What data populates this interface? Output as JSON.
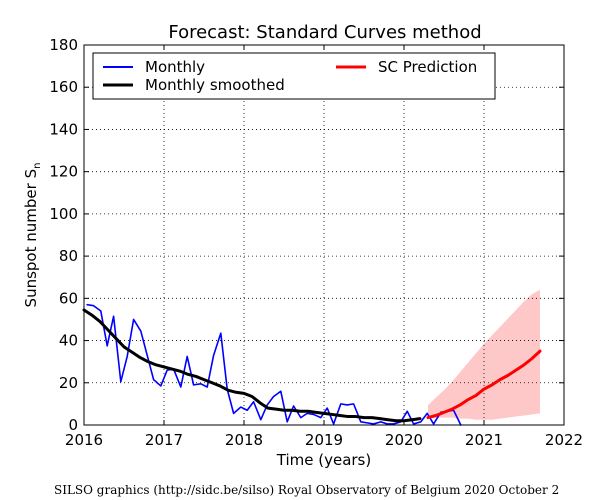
{
  "chart_data": {
    "type": "line",
    "title": "Forecast: Standard Curves method",
    "xlabel": "Time (years)",
    "ylabel": "Sunspot number S",
    "ylabel_subscript": "n",
    "xlim": [
      2016,
      2022
    ],
    "ylim": [
      0,
      180
    ],
    "xticks": [
      2016,
      2017,
      2018,
      2019,
      2020,
      2021,
      2022
    ],
    "yticks": [
      0,
      20,
      40,
      60,
      80,
      100,
      120,
      140,
      160,
      180
    ],
    "grid": true,
    "legend_position": "top",
    "series": [
      {
        "name": "Monthly",
        "color": "#0000ff",
        "x": [
          2016.04,
          2016.12,
          2016.21,
          2016.29,
          2016.37,
          2016.46,
          2016.54,
          2016.62,
          2016.71,
          2016.79,
          2016.87,
          2016.96,
          2017.04,
          2017.12,
          2017.21,
          2017.29,
          2017.37,
          2017.46,
          2017.54,
          2017.62,
          2017.71,
          2017.79,
          2017.87,
          2017.96,
          2018.04,
          2018.12,
          2018.21,
          2018.29,
          2018.37,
          2018.46,
          2018.54,
          2018.62,
          2018.71,
          2018.79,
          2018.87,
          2018.96,
          2019.04,
          2019.12,
          2019.21,
          2019.29,
          2019.37,
          2019.46,
          2019.54,
          2019.62,
          2019.71,
          2019.79,
          2019.87,
          2019.96,
          2020.04,
          2020.12,
          2020.21,
          2020.29,
          2020.37,
          2020.46,
          2020.54,
          2020.62,
          2020.71
        ],
        "values": [
          57,
          56.5,
          54,
          37.5,
          51.5,
          20.5,
          32.5,
          50,
          44.5,
          33,
          21.5,
          18.5,
          26,
          26.5,
          18,
          32.5,
          19,
          19.5,
          18,
          33,
          43.5,
          17,
          5.5,
          8.5,
          7,
          11,
          2.5,
          9.5,
          13.5,
          16,
          1.5,
          9,
          3.5,
          5.5,
          5,
          3.5,
          8,
          0.5,
          10,
          9.5,
          10,
          1.5,
          1,
          0.5,
          1.5,
          0.5,
          0.5,
          1.5,
          6.5,
          0.5,
          1.5,
          5.5,
          0.5,
          6,
          6.5,
          7,
          0
        ]
      },
      {
        "name": "Monthly smoothed",
        "color": "#000000",
        "x": [
          2016.0,
          2016.1,
          2016.2,
          2016.3,
          2016.4,
          2016.5,
          2016.6,
          2016.7,
          2016.8,
          2016.9,
          2017.0,
          2017.1,
          2017.2,
          2017.3,
          2017.4,
          2017.5,
          2017.6,
          2017.7,
          2017.8,
          2017.9,
          2018.0,
          2018.1,
          2018.2,
          2018.3,
          2018.4,
          2018.5,
          2018.6,
          2018.7,
          2018.8,
          2018.9,
          2019.0,
          2019.1,
          2019.2,
          2019.3,
          2019.4,
          2019.5,
          2019.6,
          2019.7,
          2019.8,
          2019.9,
          2020.0,
          2020.1,
          2020.2
        ],
        "values": [
          54.5,
          52,
          49,
          45,
          41,
          37,
          34.5,
          32,
          30,
          28.5,
          27.5,
          26.5,
          25.5,
          24,
          23,
          21.5,
          20,
          18.5,
          16.5,
          15.5,
          15,
          13.5,
          10.5,
          8,
          7.5,
          7,
          7,
          6.5,
          6.5,
          6,
          5.5,
          5,
          4.5,
          4,
          4,
          3.5,
          3.5,
          3,
          2.5,
          2,
          2,
          2.5,
          3
        ]
      },
      {
        "name": "SC Prediction",
        "color": "#ff0000",
        "x": [
          2020.3,
          2020.4,
          2020.5,
          2020.6,
          2020.7,
          2020.8,
          2020.9,
          2021.0,
          2021.1,
          2021.2,
          2021.3,
          2021.4,
          2021.5,
          2021.6,
          2021.7
        ],
        "values": [
          3.5,
          4.5,
          6,
          7.5,
          9.5,
          12,
          14,
          17,
          19,
          21.5,
          23.5,
          26,
          28.5,
          31.5,
          35
        ],
        "band_lower": [
          3,
          3.5,
          3.5,
          3.5,
          3,
          3,
          2.5,
          2.5,
          2.5,
          3,
          3.5,
          4,
          4.5,
          5,
          5.5
        ],
        "band_upper": [
          9.5,
          13,
          16.5,
          20.5,
          25,
          29.5,
          34,
          38.5,
          42.5,
          46.5,
          50.5,
          54.5,
          58.5,
          62,
          64
        ],
        "band_color": "#ffc8c8"
      }
    ]
  },
  "legend": {
    "monthly": "Monthly",
    "smoothed": "Monthly smoothed",
    "prediction": "SC Prediction"
  },
  "footer": "SILSO graphics (http://sidc.be/silso)  Royal Observatory of Belgium  2020 October 2"
}
